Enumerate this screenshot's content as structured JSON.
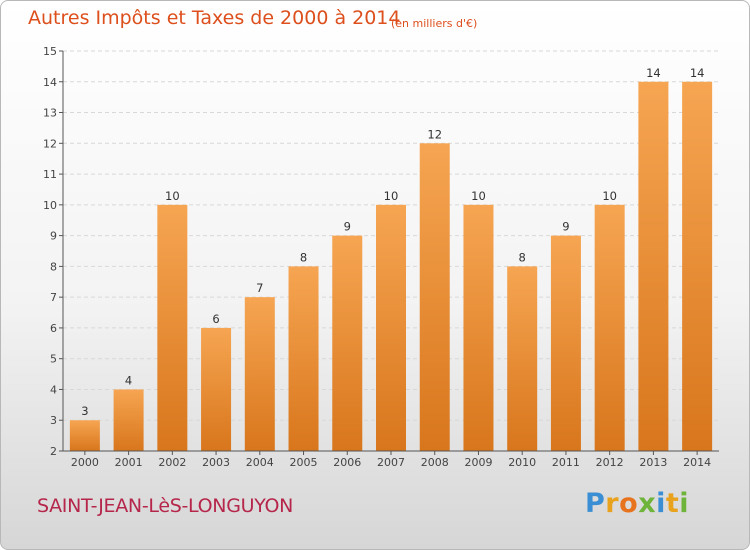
{
  "title": "Autres Impôts et Taxes de 2000 à 2014",
  "unit": "(en milliers d'€)",
  "commune": "SAINT-JEAN-LèS-LONGUYON",
  "logo": {
    "letters": [
      "P",
      "r",
      "o",
      "x",
      "i",
      "t",
      "i"
    ],
    "colors": [
      "#3a8fd4",
      "#e8a21c",
      "#e8731f",
      "#6fb43a",
      "#3a8fd4",
      "#e8a21c",
      "#6fb43a"
    ]
  },
  "colors": {
    "bar_top": "#f6a552",
    "bar_bottom": "#d8761c",
    "axis": "#555555",
    "grid": "#d8d8d8"
  },
  "chart_data": {
    "type": "bar",
    "title": "Autres Impôts et Taxes de 2000 à 2014",
    "categories": [
      "2000",
      "2001",
      "2002",
      "2003",
      "2004",
      "2005",
      "2006",
      "2007",
      "2008",
      "2009",
      "2010",
      "2011",
      "2012",
      "2013",
      "2014"
    ],
    "values": [
      3,
      4,
      10,
      6,
      7,
      8,
      9,
      10,
      12,
      10,
      8,
      9,
      10,
      14,
      14
    ],
    "ylim": [
      2,
      15
    ],
    "yticks": [
      2,
      3,
      4,
      5,
      6,
      7,
      8,
      9,
      10,
      11,
      12,
      13,
      14,
      15
    ],
    "grid": true
  }
}
